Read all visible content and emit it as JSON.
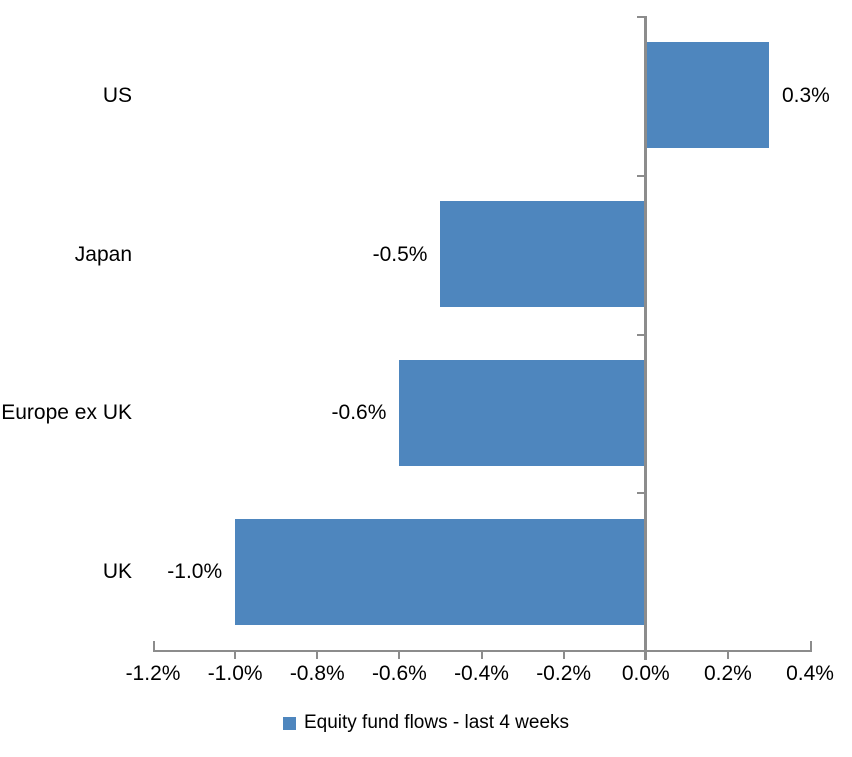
{
  "chart_data": {
    "type": "bar",
    "orientation": "horizontal",
    "title": "",
    "categories": [
      "US",
      "Japan",
      "Europe ex UK",
      "UK"
    ],
    "series": [
      {
        "name": "Equity fund flows - last 4 weeks",
        "values": [
          0.3,
          -0.5,
          -0.6,
          -1.0
        ]
      }
    ],
    "value_labels": [
      "0.3%",
      "-0.5%",
      "-0.6%",
      "-1.0%"
    ],
    "xlabel": "",
    "ylabel": "",
    "xlim": [
      -1.2,
      0.4
    ],
    "x_ticks": [
      -1.2,
      -1.0,
      -0.8,
      -0.6,
      -0.4,
      -0.2,
      0.0,
      0.2,
      0.4
    ],
    "x_tick_labels": [
      "-1.2%",
      "-1.0%",
      "-0.8%",
      "-0.6%",
      "-0.4%",
      "-0.2%",
      "0.0%",
      "0.2%",
      "0.4%"
    ],
    "grid": false,
    "legend": {
      "position": "bottom",
      "label": "Equity fund flows - last 4 weeks"
    },
    "colors": {
      "bar": "#4E86BE",
      "axis": "#8C8C8C",
      "text": "#000000",
      "background": "#FFFFFF"
    }
  }
}
